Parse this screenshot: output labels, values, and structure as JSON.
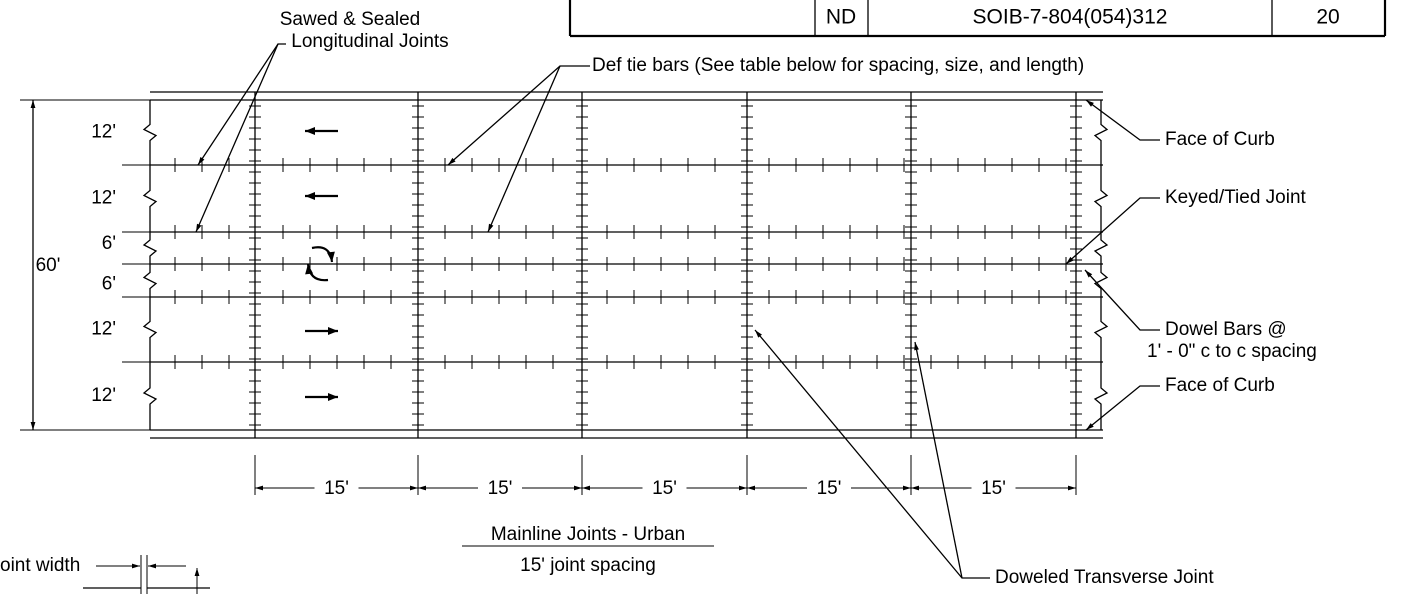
{
  "title_block": {
    "cells": [
      "ND",
      "SOIB-7-804(054)312",
      "20"
    ]
  },
  "callouts": {
    "sawed_sealed": [
      "Sawed & Sealed",
      "Longitudinal Joints"
    ],
    "tie_bars": "Def tie bars (See  table  below   for spacing, size, and length)",
    "face_of_curb_top": "Face  of  Curb",
    "keyed_tied": "Keyed/Tied  Joint",
    "dowel_bars": [
      "Dowel Bars  @",
      "1' - 0\" c  to  c spacing"
    ],
    "face_of_curb_bottom": "Face  of  Curb",
    "doweled_transverse": "Doweled  Transverse  Joint"
  },
  "lane_widths": [
    "12'",
    "12'",
    "6'",
    "6'",
    "12'",
    "12'"
  ],
  "total_width": "60'",
  "joint_spacings": [
    "15'",
    "15'",
    "15'",
    "15'",
    "15'"
  ],
  "caption": {
    "title": "Mainline  Joints  - Urban",
    "subtitle": "15' joint spacing"
  },
  "detail": {
    "label": "oint width"
  }
}
